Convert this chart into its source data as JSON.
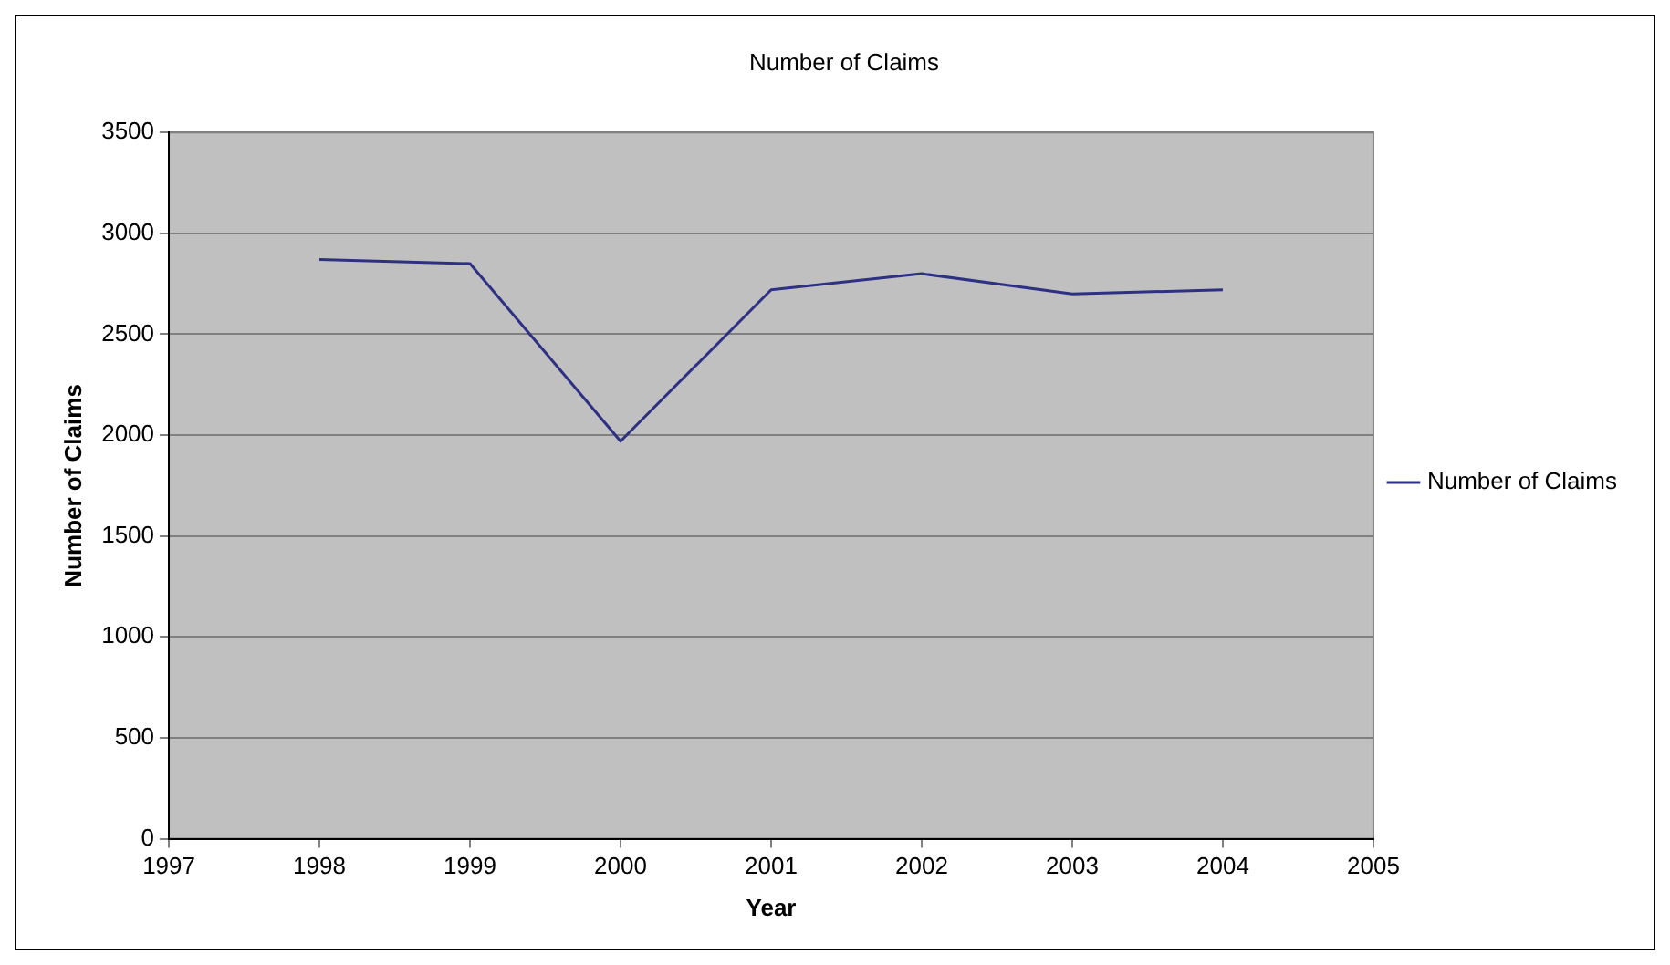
{
  "chart_data": {
    "type": "line",
    "title": "Number of Claims",
    "xlabel": "Year",
    "ylabel": "Number of Claims",
    "x": [
      1998,
      1999,
      2000,
      2001,
      2002,
      2003,
      2004
    ],
    "series": [
      {
        "name": "Number of Claims",
        "color": "#2e3183",
        "values": [
          2870,
          2850,
          1970,
          2720,
          2800,
          2700,
          2720
        ]
      }
    ],
    "xlim": [
      1997,
      2005
    ],
    "xticks": [
      1997,
      1998,
      1999,
      2000,
      2001,
      2002,
      2003,
      2004,
      2005
    ],
    "ylim": [
      0,
      3500
    ],
    "yticks": [
      0,
      500,
      1000,
      1500,
      2000,
      2500,
      3000,
      3500
    ],
    "grid": "y",
    "legend": "right",
    "marker": "none",
    "line_style": "solid"
  }
}
